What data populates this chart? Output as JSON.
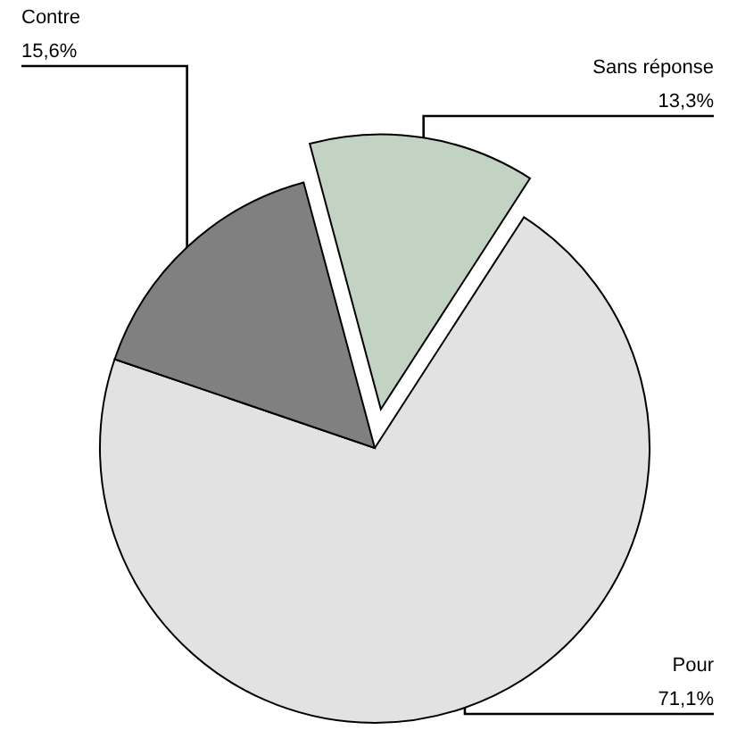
{
  "chart_data": {
    "type": "pie",
    "categories": [
      "Sans réponse",
      "Pour",
      "Contre"
    ],
    "values": [
      13.3,
      71.1,
      15.6
    ],
    "value_labels": [
      "13,3%",
      "71,1%",
      "15,6%"
    ],
    "colors": [
      "#c3d3c3",
      "#e2e2e2",
      "#808080"
    ]
  }
}
